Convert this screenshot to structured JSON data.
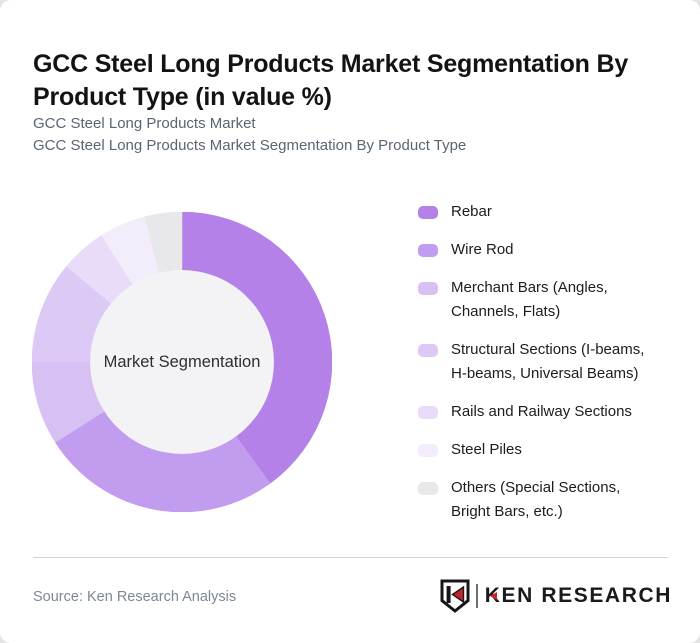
{
  "window": {
    "background": "#e4e4e6",
    "card_background": "#ffffff"
  },
  "header": {
    "title": "GCC Steel Long Products Market Segmentation By Product Type (in value %)",
    "subtitle_line1": "GCC Steel Long Products Market",
    "subtitle_line2": "GCC Steel Long Products Market Segmentation By Product Type"
  },
  "chart_data": {
    "type": "pie",
    "variant": "donut",
    "title": "GCC Steel Long Products Market Segmentation By Product Type (in value %)",
    "center_label": "Market Segmentation",
    "unit": "value %",
    "value_labels_shown": false,
    "values_estimated_from_arc_angles": true,
    "start_angle_deg": 0,
    "direction": "clockwise",
    "legend_position": "right",
    "inner_radius_ratio": 0.613,
    "inner_circle_color": "#f3f2f4",
    "segments": [
      {
        "label": "Rebar",
        "value": 40,
        "color": "#b381e8"
      },
      {
        "label": "Wire Rod",
        "value": 26,
        "color": "#c29cee"
      },
      {
        "label": "Merchant Bars (Angles, Channels, Flats)",
        "value": 9,
        "color": "#d7c0f3"
      },
      {
        "label": "Structural Sections (I-beams, H-beams, Universal Beams)",
        "value": 11,
        "color": "#ddc9f5"
      },
      {
        "label": "Rails and Railway Sections",
        "value": 5,
        "color": "#e9dcf8"
      },
      {
        "label": "Steel Piles",
        "value": 5,
        "color": "#f3edfb"
      },
      {
        "label": "Others (Special Sections, Bright Bars, etc.)",
        "value": 4,
        "color": "#e8e7e9"
      }
    ]
  },
  "footer": {
    "source": "Source: Ken Research Analysis",
    "logo_text": "KEN RESEARCH",
    "logo_black": "#17171b",
    "logo_red": "#c5242b"
  }
}
